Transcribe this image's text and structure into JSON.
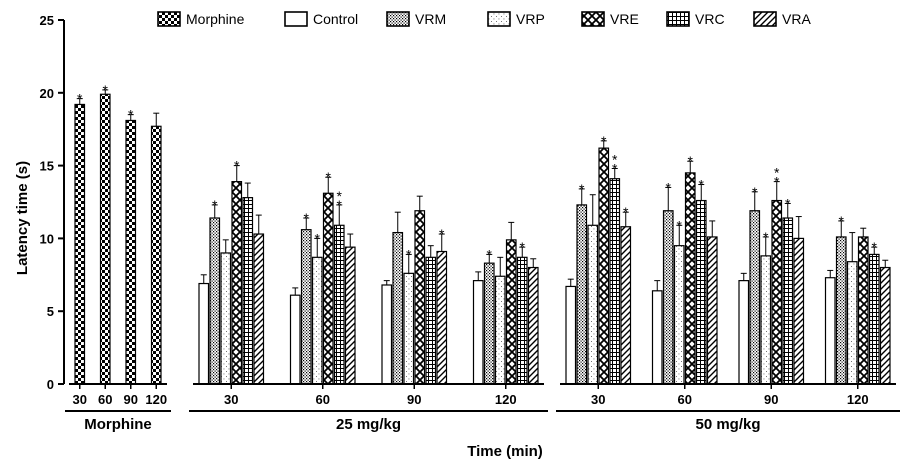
{
  "chart_data": {
    "type": "bar",
    "xlabel": "Time (min)",
    "ylabel": "Latency time (s)",
    "ylim": [
      0,
      25
    ],
    "yticks": [
      0,
      5,
      10,
      15,
      20,
      25
    ],
    "grid": false,
    "legend_position": "top",
    "legend": [
      "Morphine",
      "Control",
      "VRM",
      "VRP",
      "VRE",
      "VRC",
      "VRA"
    ],
    "groups": [
      {
        "label": "Morphine",
        "times": [
          {
            "time": "30",
            "bars": [
              {
                "series": "Morphine",
                "value": 19.2,
                "err": 0.4,
                "sig": 1
              }
            ]
          },
          {
            "time": "60",
            "bars": [
              {
                "series": "Morphine",
                "value": 19.9,
                "err": 0.3,
                "sig": 1
              }
            ]
          },
          {
            "time": "90",
            "bars": [
              {
                "series": "Morphine",
                "value": 18.1,
                "err": 0.4,
                "sig": 1
              }
            ]
          },
          {
            "time": "120",
            "bars": [
              {
                "series": "Morphine",
                "value": 17.7,
                "err": 0.9,
                "sig": 0
              }
            ]
          }
        ]
      },
      {
        "label": "25 mg/kg",
        "times": [
          {
            "time": "30",
            "bars": [
              {
                "series": "Control",
                "value": 6.9,
                "err": 0.6,
                "sig": 0
              },
              {
                "series": "VRM",
                "value": 11.4,
                "err": 0.9,
                "sig": 1
              },
              {
                "series": "VRP",
                "value": 9.0,
                "err": 0.9,
                "sig": 0
              },
              {
                "series": "VRE",
                "value": 13.9,
                "err": 1.1,
                "sig": 1
              },
              {
                "series": "VRC",
                "value": 12.8,
                "err": 1.0,
                "sig": 0
              },
              {
                "series": "VRA",
                "value": 10.3,
                "err": 1.3,
                "sig": 0
              }
            ]
          },
          {
            "time": "60",
            "bars": [
              {
                "series": "Control",
                "value": 6.1,
                "err": 0.5,
                "sig": 0
              },
              {
                "series": "VRM",
                "value": 10.6,
                "err": 0.8,
                "sig": 1
              },
              {
                "series": "VRP",
                "value": 8.7,
                "err": 1.3,
                "sig": 1
              },
              {
                "series": "VRE",
                "value": 13.1,
                "err": 1.1,
                "sig": 1
              },
              {
                "series": "VRC",
                "value": 10.9,
                "err": 1.4,
                "sig": 2
              },
              {
                "series": "VRA",
                "value": 9.4,
                "err": 0.9,
                "sig": 0
              }
            ]
          },
          {
            "time": "90",
            "bars": [
              {
                "series": "Control",
                "value": 6.8,
                "err": 0.3,
                "sig": 0
              },
              {
                "series": "VRM",
                "value": 10.4,
                "err": 1.4,
                "sig": 0
              },
              {
                "series": "VRP",
                "value": 7.6,
                "err": 1.3,
                "sig": 1
              },
              {
                "series": "VRE",
                "value": 11.9,
                "err": 1.0,
                "sig": 0
              },
              {
                "series": "VRC",
                "value": 8.7,
                "err": 0.8,
                "sig": 0
              },
              {
                "series": "VRA",
                "value": 9.1,
                "err": 1.2,
                "sig": 1
              }
            ]
          },
          {
            "time": "120",
            "bars": [
              {
                "series": "Control",
                "value": 7.1,
                "err": 0.6,
                "sig": 0
              },
              {
                "series": "VRM",
                "value": 8.3,
                "err": 0.6,
                "sig": 1
              },
              {
                "series": "VRP",
                "value": 7.4,
                "err": 1.3,
                "sig": 0
              },
              {
                "series": "VRE",
                "value": 9.9,
                "err": 1.2,
                "sig": 0
              },
              {
                "series": "VRC",
                "value": 8.7,
                "err": 0.7,
                "sig": 1
              },
              {
                "series": "VRA",
                "value": 8.0,
                "err": 0.6,
                "sig": 0
              }
            ]
          }
        ]
      },
      {
        "label": "50 mg/kg",
        "times": [
          {
            "time": "30",
            "bars": [
              {
                "series": "Control",
                "value": 6.7,
                "err": 0.5,
                "sig": 0
              },
              {
                "series": "VRM",
                "value": 12.3,
                "err": 1.1,
                "sig": 1
              },
              {
                "series": "VRP",
                "value": 10.9,
                "err": 2.1,
                "sig": 0
              },
              {
                "series": "VRE",
                "value": 16.2,
                "err": 0.5,
                "sig": 1
              },
              {
                "series": "VRC",
                "value": 14.1,
                "err": 0.7,
                "sig": 2
              },
              {
                "series": "VRA",
                "value": 10.8,
                "err": 1.0,
                "sig": 1
              }
            ]
          },
          {
            "time": "60",
            "bars": [
              {
                "series": "Control",
                "value": 6.4,
                "err": 0.7,
                "sig": 0
              },
              {
                "series": "VRM",
                "value": 11.9,
                "err": 1.6,
                "sig": 1
              },
              {
                "series": "VRP",
                "value": 9.5,
                "err": 1.4,
                "sig": 1
              },
              {
                "series": "VRE",
                "value": 14.5,
                "err": 0.8,
                "sig": 1
              },
              {
                "series": "VRC",
                "value": 12.6,
                "err": 1.1,
                "sig": 1
              },
              {
                "series": "VRA",
                "value": 10.1,
                "err": 1.1,
                "sig": 0
              }
            ]
          },
          {
            "time": "90",
            "bars": [
              {
                "series": "Control",
                "value": 7.1,
                "err": 0.5,
                "sig": 0
              },
              {
                "series": "VRM",
                "value": 11.9,
                "err": 1.3,
                "sig": 1
              },
              {
                "series": "VRP",
                "value": 8.8,
                "err": 1.3,
                "sig": 1
              },
              {
                "series": "VRE",
                "value": 12.6,
                "err": 1.3,
                "sig": 2
              },
              {
                "series": "VRC",
                "value": 11.4,
                "err": 1.0,
                "sig": 1
              },
              {
                "series": "VRA",
                "value": 10.0,
                "err": 1.5,
                "sig": 0
              }
            ]
          },
          {
            "time": "120",
            "bars": [
              {
                "series": "Control",
                "value": 7.3,
                "err": 0.5,
                "sig": 0
              },
              {
                "series": "VRM",
                "value": 10.1,
                "err": 1.1,
                "sig": 1
              },
              {
                "series": "VRP",
                "value": 8.4,
                "err": 2.0,
                "sig": 0
              },
              {
                "series": "VRE",
                "value": 10.1,
                "err": 0.6,
                "sig": 0
              },
              {
                "series": "VRC",
                "value": 8.9,
                "err": 0.5,
                "sig": 1
              },
              {
                "series": "VRA",
                "value": 8.0,
                "err": 0.5,
                "sig": 0
              }
            ]
          }
        ]
      }
    ]
  }
}
